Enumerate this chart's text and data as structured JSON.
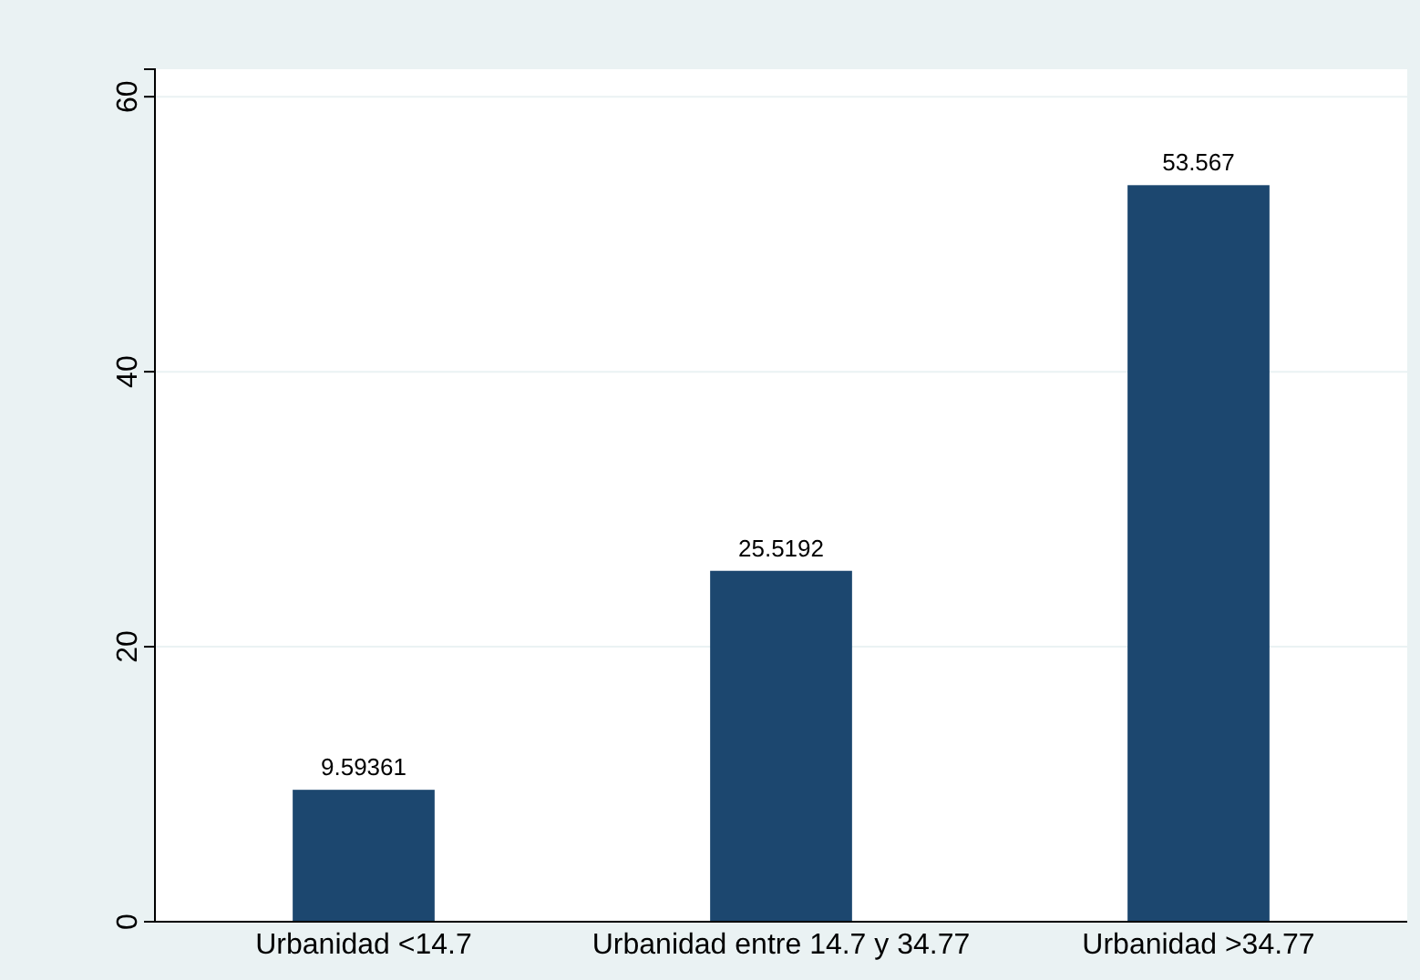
{
  "chart_data": {
    "type": "bar",
    "categories": [
      "Urbanidad <14.7",
      "Urbanidad entre 14.7 y 34.77",
      "Urbanidad >34.77"
    ],
    "values": [
      9.59361,
      25.5192,
      53.567
    ],
    "color": "#1c476f",
    "ylim": [
      0,
      62
    ],
    "yticks": [
      0,
      20,
      40,
      60
    ],
    "grid": "y",
    "data_labels": true
  }
}
